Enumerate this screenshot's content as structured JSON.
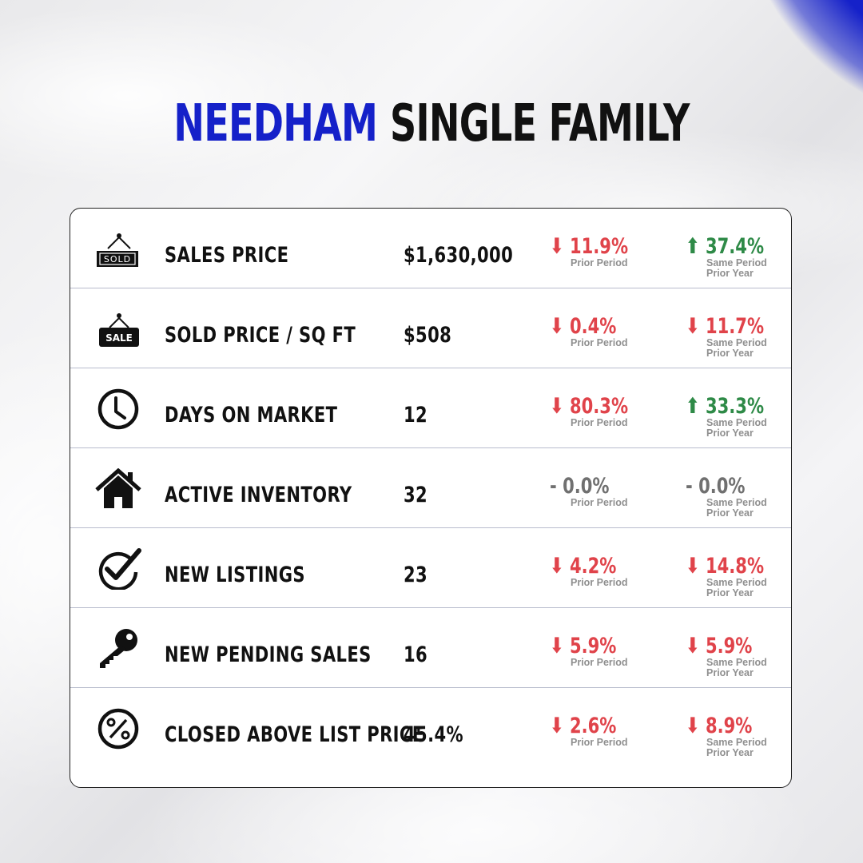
{
  "title": {
    "part1": "NEEDHAM",
    "part2": "SINGLE FAMILY"
  },
  "colors": {
    "accent": "#1521c9",
    "down": "#e0434a",
    "up": "#2e8a47",
    "flat": "#707070"
  },
  "rows": [
    {
      "icon": "sold-sign-icon",
      "label": "SALES PRICE",
      "value": "$1,630,000",
      "prior": {
        "dir": "down",
        "arrow": "🡇",
        "pct": "11.9%",
        "note": "Prior Period"
      },
      "year": {
        "dir": "up",
        "arrow": "🡅",
        "pct": "37.4%",
        "note": "Same Period Prior Year"
      }
    },
    {
      "icon": "sale-sign-icon",
      "label": "SOLD PRICE / SQ FT",
      "value": "$508",
      "prior": {
        "dir": "down",
        "arrow": "🡇",
        "pct": "0.4%",
        "note": "Prior Period"
      },
      "year": {
        "dir": "down",
        "arrow": "🡇",
        "pct": "11.7%",
        "note": "Same Period Prior Year"
      }
    },
    {
      "icon": "clock-icon",
      "label": "DAYS ON MARKET",
      "value": "12",
      "prior": {
        "dir": "down",
        "arrow": "🡇",
        "pct": "80.3%",
        "note": "Prior Period"
      },
      "year": {
        "dir": "up",
        "arrow": "🡅",
        "pct": "33.3%",
        "note": "Same Period Prior Year"
      }
    },
    {
      "icon": "house-icon",
      "label": "ACTIVE INVENTORY",
      "value": "32",
      "prior": {
        "dir": "flat",
        "arrow": "-",
        "pct": "0.0%",
        "note": "Prior Period"
      },
      "year": {
        "dir": "flat",
        "arrow": "-",
        "pct": "0.0%",
        "note": "Same Period Prior Year"
      }
    },
    {
      "icon": "checkmark-icon",
      "label": "NEW LISTINGS",
      "value": "23",
      "prior": {
        "dir": "down",
        "arrow": "🡇",
        "pct": "4.2%",
        "note": "Prior Period"
      },
      "year": {
        "dir": "down",
        "arrow": "🡇",
        "pct": "14.8%",
        "note": "Same Period Prior Year"
      }
    },
    {
      "icon": "key-icon",
      "label": "NEW PENDING SALES",
      "value": "16",
      "prior": {
        "dir": "down",
        "arrow": "🡇",
        "pct": "5.9%",
        "note": "Prior Period"
      },
      "year": {
        "dir": "down",
        "arrow": "🡇",
        "pct": "5.9%",
        "note": "Same Period Prior Year"
      }
    },
    {
      "icon": "percent-icon",
      "label": "CLOSED ABOVE LIST PRICE",
      "value": "45.4%",
      "prior": {
        "dir": "down",
        "arrow": "🡇",
        "pct": "2.6%",
        "note": "Prior Period"
      },
      "year": {
        "dir": "down",
        "arrow": "🡇",
        "pct": "8.9%",
        "note": "Same Period Prior Year"
      }
    }
  ]
}
